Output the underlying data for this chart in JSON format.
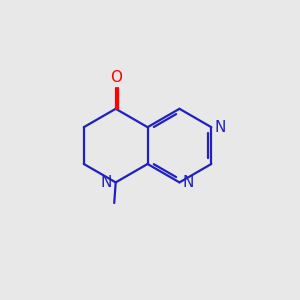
{
  "bg_color": "#e8e8e8",
  "bond_color": "#2020c0",
  "o_color": "#ff0000",
  "n_color": "#2020c0",
  "line_width": 1.6,
  "font_size": 11,
  "figsize": [
    3.0,
    3.0
  ],
  "dpi": 100,
  "xlim": [
    0,
    10
  ],
  "ylim": [
    0,
    10
  ]
}
